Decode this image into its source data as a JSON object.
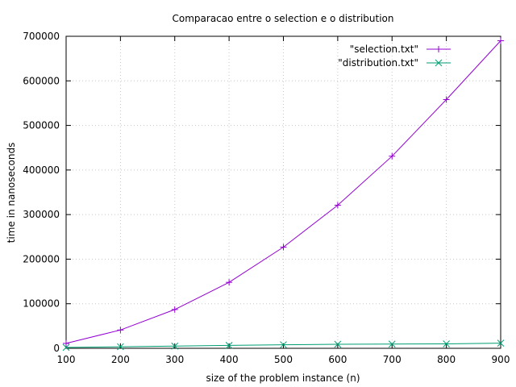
{
  "chart_data": {
    "type": "line",
    "title": "Comparacao entre o selection e o distribution",
    "xlabel": "size of the problem instance (n)",
    "ylabel": "time in nanoseconds",
    "xlim": [
      100,
      900
    ],
    "ylim": [
      0,
      700000
    ],
    "xticks": [
      100,
      200,
      300,
      400,
      500,
      600,
      700,
      800,
      900
    ],
    "yticks": [
      0,
      100000,
      200000,
      300000,
      400000,
      500000,
      600000,
      700000
    ],
    "grid": true,
    "legend_position": "top-right",
    "x": [
      100,
      200,
      300,
      400,
      500,
      600,
      700,
      800,
      900
    ],
    "series": [
      {
        "name": "\"selection.txt\"",
        "color": "#9400d3",
        "marker": "plus",
        "values": [
          11000,
          41000,
          87000,
          148000,
          227000,
          321000,
          431000,
          558000,
          690000
        ]
      },
      {
        "name": "\"distribution.txt\"",
        "color": "#009e73",
        "marker": "cross",
        "values": [
          2000,
          3500,
          5000,
          6500,
          8000,
          9000,
          9500,
          10000,
          11500
        ]
      }
    ]
  }
}
